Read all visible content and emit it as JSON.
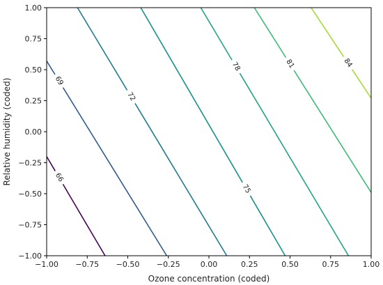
{
  "chart_data": {
    "type": "contour",
    "title": "",
    "xlabel": "Ozone concentration (coded)",
    "ylabel": "Relative humidity (coded)",
    "xlim": [
      -1.0,
      1.0
    ],
    "ylim": [
      -1.0,
      1.0
    ],
    "xticks": [
      "−1.00",
      "−0.75",
      "−0.50",
      "−0.25",
      "0.00",
      "0.25",
      "0.50",
      "0.75",
      "1.00"
    ],
    "yticks": [
      "−1.00",
      "−0.75",
      "−0.50",
      "−0.25",
      "0.00",
      "0.25",
      "0.50",
      "0.75",
      "1.00"
    ],
    "grid": false,
    "colormap": "viridis",
    "levels": [
      {
        "level": 66,
        "label": "66",
        "color": "#440154",
        "points": [
          [
            -1.0,
            -0.2
          ],
          [
            -0.64,
            -1.0
          ]
        ],
        "label_at": [
          -0.91,
          -0.36
        ]
      },
      {
        "level": 69,
        "label": "69",
        "color": "#2e5a8a",
        "points": [
          [
            -1.0,
            0.57
          ],
          [
            -0.26,
            -1.0
          ]
        ],
        "label_at": [
          -0.91,
          0.42
        ]
      },
      {
        "level": 72,
        "label": "72",
        "color": "#1f7a8c",
        "points": [
          [
            -0.81,
            1.0
          ],
          [
            0.11,
            -1.0
          ]
        ],
        "label_at": [
          -0.57,
          0.21
        ]
      },
      {
        "level": 75,
        "label": "75",
        "color": "#15918a",
        "points": [
          [
            -0.42,
            1.0
          ],
          [
            0.47,
            -1.0
          ]
        ],
        "label_at": [
          0.26,
          -0.44
        ]
      },
      {
        "level": 78,
        "label": "78",
        "color": "#20a385",
        "points": [
          [
            -0.05,
            1.0
          ],
          [
            0.86,
            -1.0
          ]
        ],
        "label_at": [
          0.16,
          0.52
        ]
      },
      {
        "level": 81,
        "label": "81",
        "color": "#3bbb75",
        "points": [
          [
            0.28,
            1.0
          ],
          [
            1.0,
            -0.49
          ]
        ],
        "label_at": [
          0.48,
          0.53
        ]
      },
      {
        "level": 84,
        "label": "84",
        "color": "#a5db36",
        "points": [
          [
            0.63,
            1.0
          ],
          [
            1.0,
            0.27
          ]
        ],
        "label_at": [
          0.83,
          0.53
        ]
      }
    ]
  }
}
